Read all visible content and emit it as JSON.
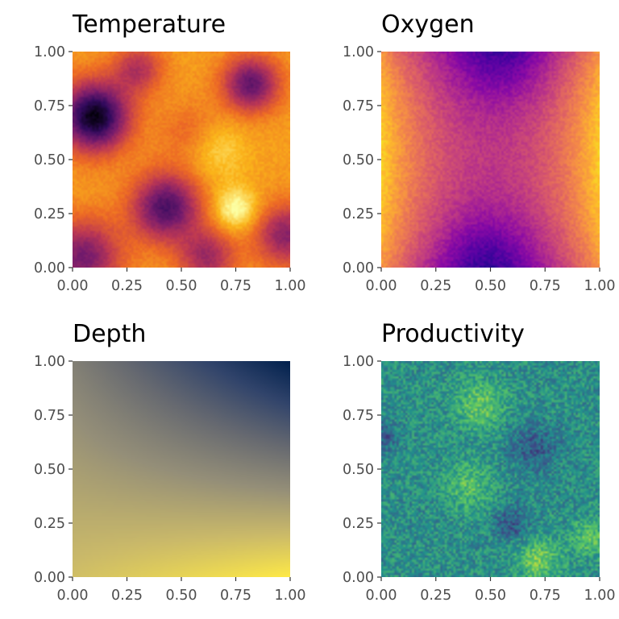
{
  "chart_data": [
    {
      "type": "heatmap",
      "title": "Temperature",
      "palette": "inferno",
      "colors": [
        "#000004",
        "#320A5E",
        "#781C6D",
        "#BC3754",
        "#ED6925",
        "#FBB61A",
        "#FCFFA4"
      ],
      "xlim": [
        0,
        1
      ],
      "ylim": [
        0,
        1
      ],
      "x_ticks": [
        "0.00",
        "0.25",
        "0.50",
        "0.75",
        "1.00"
      ],
      "y_ticks": [
        "0.00",
        "0.25",
        "0.50",
        "0.75",
        "1.00"
      ],
      "grid": false,
      "noise": 0.03,
      "field": {
        "kind": "blobs",
        "base": 0.78,
        "blobs": [
          {
            "x": 0.1,
            "y": 0.7,
            "amp": -0.75,
            "sigma": 0.11
          },
          {
            "x": 0.82,
            "y": 0.85,
            "amp": -0.5,
            "sigma": 0.09
          },
          {
            "x": 0.43,
            "y": 0.28,
            "amp": -0.55,
            "sigma": 0.11
          },
          {
            "x": 0.05,
            "y": 0.05,
            "amp": -0.45,
            "sigma": 0.12
          },
          {
            "x": 0.98,
            "y": 0.15,
            "amp": -0.4,
            "sigma": 0.1
          },
          {
            "x": 0.62,
            "y": 0.05,
            "amp": -0.35,
            "sigma": 0.09
          },
          {
            "x": 0.3,
            "y": 0.92,
            "amp": -0.3,
            "sigma": 0.08
          },
          {
            "x": 0.55,
            "y": 0.62,
            "amp": -0.15,
            "sigma": 0.1
          },
          {
            "x": 0.75,
            "y": 0.27,
            "amp": 0.25,
            "sigma": 0.07
          },
          {
            "x": 0.65,
            "y": 0.55,
            "amp": 0.15,
            "sigma": 0.1
          }
        ]
      }
    },
    {
      "type": "heatmap",
      "title": "Oxygen",
      "palette": "plasma",
      "colors": [
        "#0D0887",
        "#5302A3",
        "#8B0AA5",
        "#B83289",
        "#DB5C68",
        "#F48849",
        "#FEBC2A",
        "#F0F921"
      ],
      "xlim": [
        0,
        1
      ],
      "ylim": [
        0,
        1
      ],
      "x_ticks": [
        "0.00",
        "0.25",
        "0.50",
        "0.75",
        "1.00"
      ],
      "y_ticks": [
        "0.00",
        "0.25",
        "0.50",
        "0.75",
        "1.00"
      ],
      "grid": false,
      "noise": 0.05,
      "field": {
        "kind": "oxygen",
        "base": 0.45,
        "x_amp": 0.45,
        "y_amp": -0.15,
        "blobs": [
          {
            "x": 0.55,
            "y": 1.0,
            "amp": -0.2,
            "sigma": 0.15
          },
          {
            "x": 0.48,
            "y": 0.02,
            "amp": -0.22,
            "sigma": 0.15
          }
        ]
      }
    },
    {
      "type": "heatmap",
      "title": "Depth",
      "palette": "cividis",
      "colors": [
        "#00204D",
        "#31446B",
        "#666970",
        "#958F78",
        "#CBBA69",
        "#FFEA46"
      ],
      "xlim": [
        0,
        1
      ],
      "ylim": [
        0,
        1
      ],
      "x_ticks": [
        "0.00",
        "0.25",
        "0.50",
        "0.75",
        "1.00"
      ],
      "y_ticks": [
        "0.00",
        "0.25",
        "0.50",
        "0.75",
        "1.00"
      ],
      "grid": false,
      "noise": 0,
      "field": {
        "kind": "depth",
        "corners": {
          "bottom_left": 0.82,
          "bottom_right": 1.0,
          "top_left": 0.52,
          "top_right": 0.0
        }
      }
    },
    {
      "type": "heatmap",
      "title": "Productivity",
      "palette": "viridis",
      "colors": [
        "#440154",
        "#3B528B",
        "#21908C",
        "#5DC863",
        "#FDE725"
      ],
      "xlim": [
        0,
        1
      ],
      "ylim": [
        0,
        1
      ],
      "x_ticks": [
        "0.00",
        "0.25",
        "0.50",
        "0.75",
        "1.00"
      ],
      "y_ticks": [
        "0.00",
        "0.25",
        "0.50",
        "0.75",
        "1.00"
      ],
      "grid": false,
      "noise": 0.16,
      "field": {
        "kind": "blobs",
        "base": 0.5,
        "blobs": [
          {
            "x": 0.45,
            "y": 0.8,
            "amp": 0.25,
            "sigma": 0.08
          },
          {
            "x": 0.4,
            "y": 0.42,
            "amp": 0.2,
            "sigma": 0.08
          },
          {
            "x": 0.72,
            "y": 0.08,
            "amp": 0.28,
            "sigma": 0.07
          },
          {
            "x": 0.95,
            "y": 0.18,
            "amp": 0.22,
            "sigma": 0.06
          },
          {
            "x": 0.6,
            "y": 0.25,
            "amp": -0.22,
            "sigma": 0.06
          },
          {
            "x": 0.7,
            "y": 0.6,
            "amp": -0.2,
            "sigma": 0.08
          },
          {
            "x": 0.02,
            "y": 0.65,
            "amp": -0.18,
            "sigma": 0.05
          }
        ]
      }
    }
  ]
}
